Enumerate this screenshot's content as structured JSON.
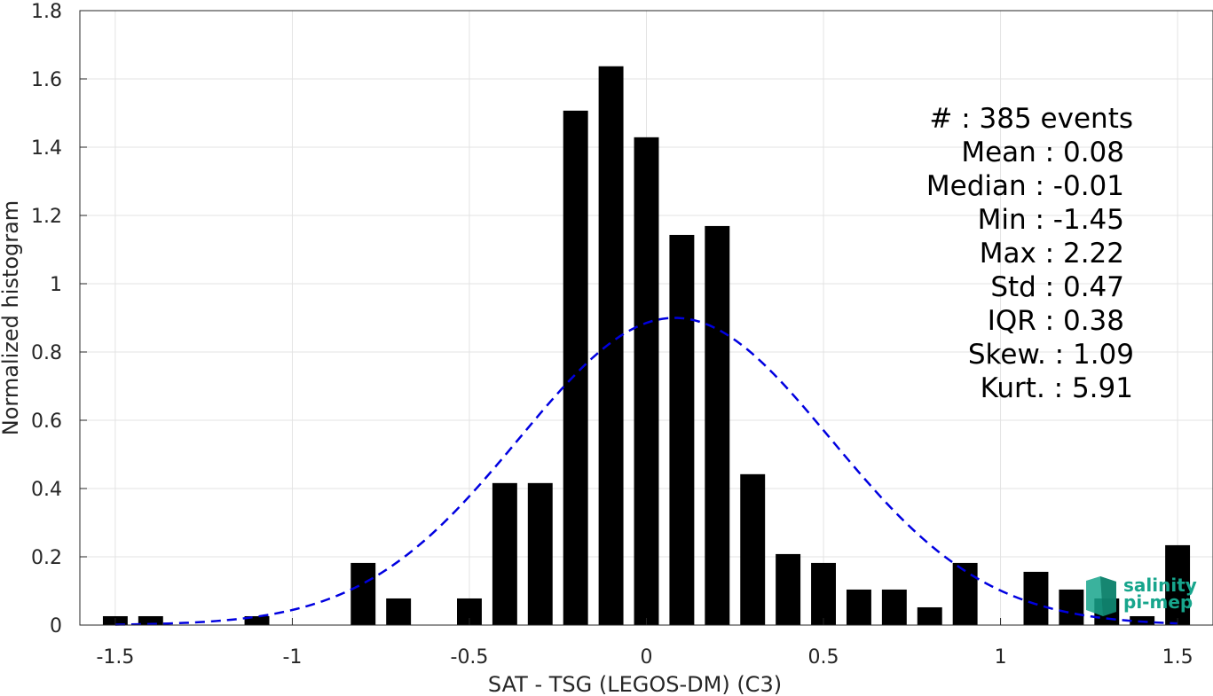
{
  "chart_data": {
    "type": "bar",
    "xlabel": "SAT - TSG (LEGOS-DM) (C3)",
    "ylabel": "Normalized histogram",
    "xlim": [
      -1.6,
      1.6
    ],
    "ylim": [
      0,
      1.8
    ],
    "x_ticks": [
      -1.5,
      -1,
      -0.5,
      0,
      0.5,
      1,
      1.5
    ],
    "x_tick_labels": [
      "-1.5",
      "-1",
      "-0.5",
      "0",
      "0.5",
      "1",
      "1.5"
    ],
    "y_ticks": [
      0,
      0.2,
      0.4,
      0.6,
      0.8,
      1,
      1.2,
      1.4,
      1.6,
      1.8
    ],
    "y_tick_labels": [
      "0",
      "0.2",
      "0.4",
      "0.6",
      "0.8",
      "1",
      "1.2",
      "1.4",
      "1.6",
      "1.8"
    ],
    "grid": true,
    "bar_color": "#000000",
    "bar_width": 0.07,
    "bins": [
      {
        "x": -1.5,
        "value": 0.026
      },
      {
        "x": -1.4,
        "value": 0.026
      },
      {
        "x": -1.3,
        "value": 0
      },
      {
        "x": -1.2,
        "value": 0
      },
      {
        "x": -1.1,
        "value": 0.026
      },
      {
        "x": -1.0,
        "value": 0
      },
      {
        "x": -0.9,
        "value": 0
      },
      {
        "x": -0.8,
        "value": 0.182
      },
      {
        "x": -0.7,
        "value": 0.078
      },
      {
        "x": -0.6,
        "value": 0
      },
      {
        "x": -0.5,
        "value": 0.078
      },
      {
        "x": -0.4,
        "value": 0.416
      },
      {
        "x": -0.3,
        "value": 0.416
      },
      {
        "x": -0.2,
        "value": 1.507
      },
      {
        "x": -0.1,
        "value": 1.637
      },
      {
        "x": 0.0,
        "value": 1.429
      },
      {
        "x": 0.1,
        "value": 1.143
      },
      {
        "x": 0.2,
        "value": 1.169
      },
      {
        "x": 0.3,
        "value": 0.442
      },
      {
        "x": 0.4,
        "value": 0.208
      },
      {
        "x": 0.5,
        "value": 0.182
      },
      {
        "x": 0.6,
        "value": 0.104
      },
      {
        "x": 0.7,
        "value": 0.104
      },
      {
        "x": 0.8,
        "value": 0.052
      },
      {
        "x": 0.9,
        "value": 0.182
      },
      {
        "x": 1.0,
        "value": 0
      },
      {
        "x": 1.1,
        "value": 0.156
      },
      {
        "x": 1.2,
        "value": 0.104
      },
      {
        "x": 1.3,
        "value": 0.078
      },
      {
        "x": 1.4,
        "value": 0.026
      },
      {
        "x": 1.5,
        "value": 0.234
      }
    ],
    "fit_curve": {
      "type": "normal",
      "mean": 0.08,
      "std": 0.44,
      "peak": 0.9,
      "x_range": [
        -1.5,
        1.5
      ],
      "color": "#0000e0",
      "style": "dashed"
    },
    "annotations": [
      "#  : 385 events",
      "Mean : 0.08",
      "Median : -0.01",
      "Min : -1.45",
      "Max : 2.22",
      "Std : 0.47",
      "IQR : 0.38",
      "Skew. : 1.09",
      "Kurt. : 5.91"
    ],
    "logo": {
      "line1": "salinity",
      "line2": "pi-mep",
      "color": "#17a58c"
    }
  }
}
